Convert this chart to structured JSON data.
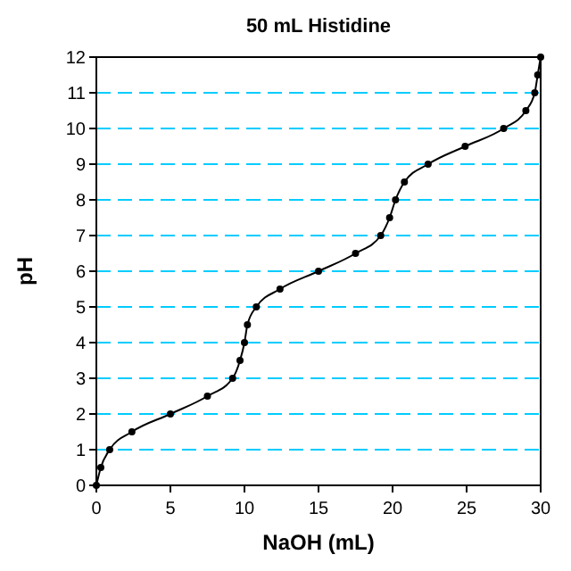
{
  "chart_data": {
    "type": "line",
    "title": "50 mL Histidine",
    "xlabel": "NaOH (mL)",
    "ylabel": "pH",
    "x": [
      0,
      0.3,
      0.9,
      2.4,
      5.0,
      7.5,
      9.2,
      9.7,
      10.0,
      10.2,
      10.8,
      12.4,
      15.0,
      17.5,
      19.2,
      19.8,
      20.2,
      20.8,
      22.4,
      24.9,
      27.5,
      29.0,
      29.6,
      29.8,
      30
    ],
    "series": [
      {
        "color": "#000000",
        "values": [
          0,
          0.5,
          1.0,
          1.5,
          2.0,
          2.5,
          3.0,
          3.5,
          4.0,
          4.5,
          5.0,
          5.5,
          6.0,
          6.5,
          7.0,
          7.5,
          8.0,
          8.5,
          9.0,
          9.5,
          10.0,
          10.5,
          11.0,
          11.5,
          12
        ]
      }
    ],
    "xlim": [
      0,
      30
    ],
    "xticks": [
      0,
      5,
      10,
      15,
      20,
      25,
      30
    ],
    "ylim": [
      0,
      12
    ],
    "yticks": [
      0,
      1,
      2,
      3,
      4,
      5,
      6,
      7,
      8,
      9,
      10,
      11,
      12
    ],
    "grid": "y",
    "marker": "circle"
  }
}
